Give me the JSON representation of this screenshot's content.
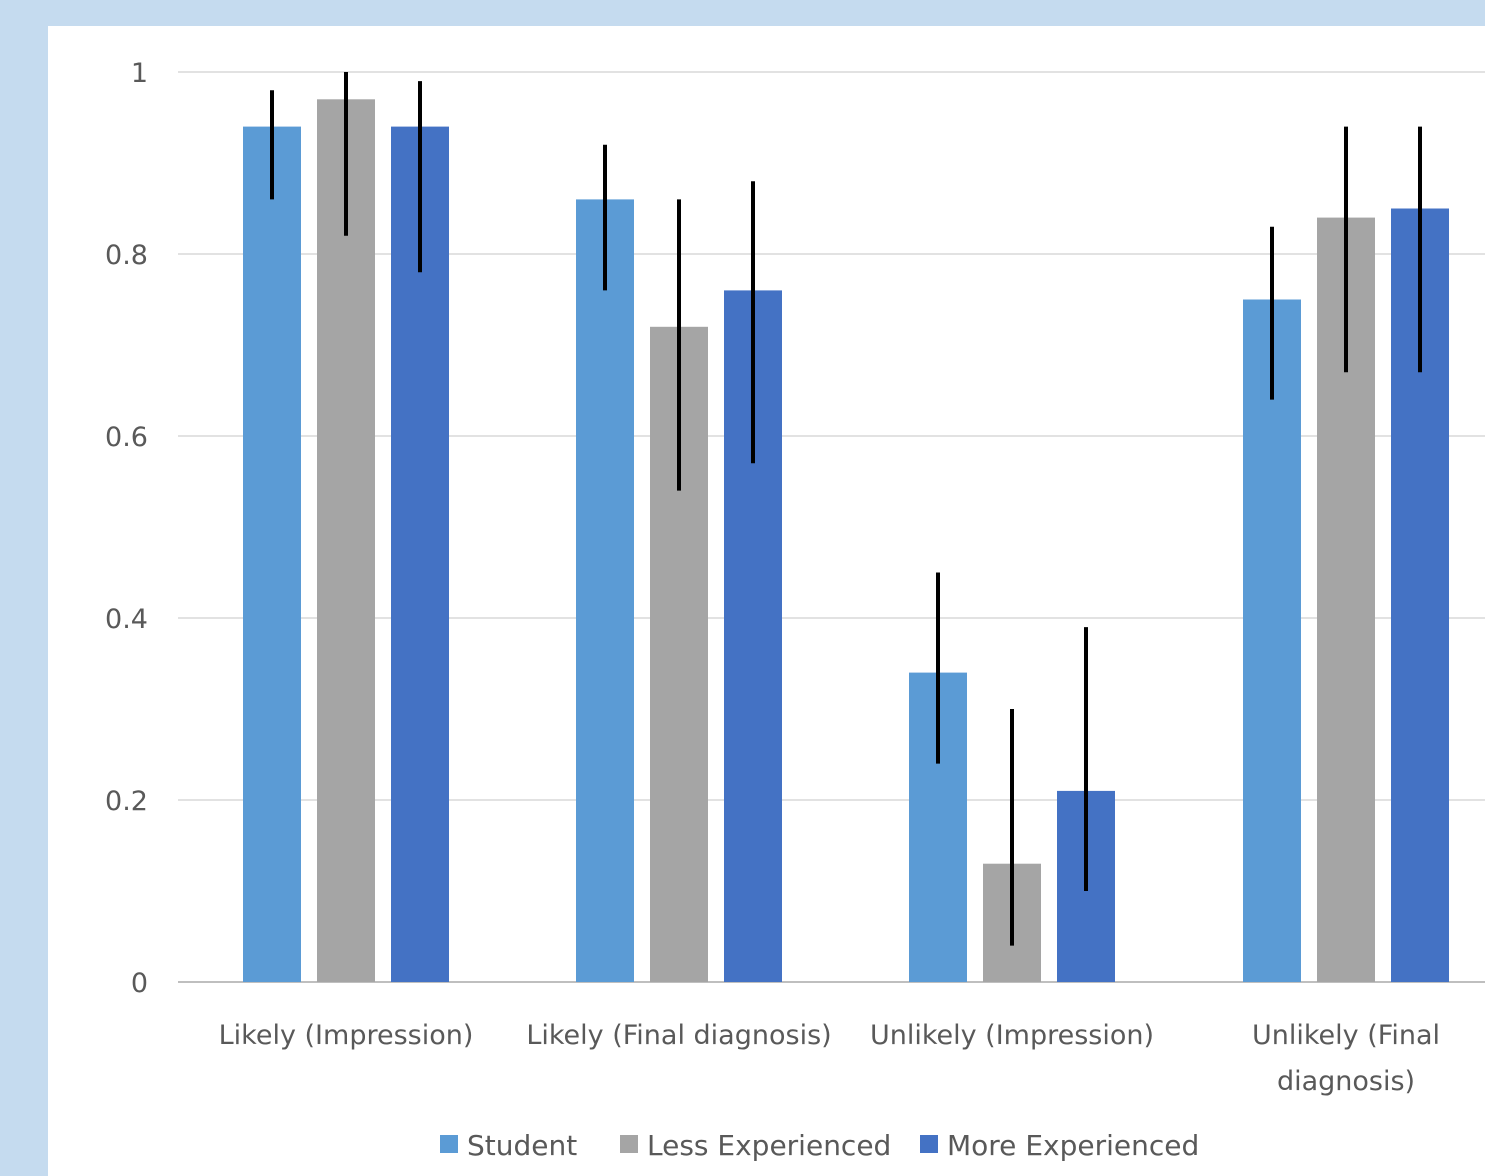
{
  "chart_data": {
    "type": "bar",
    "categories": [
      [
        "Likely (Impression)"
      ],
      [
        "Likely (Final diagnosis)"
      ],
      [
        "Unlikely (Impression)"
      ],
      [
        "Unlikely (Final",
        "diagnosis)"
      ]
    ],
    "yticks": [
      "0",
      "0.2",
      "0.4",
      "0.6",
      "0.8",
      "1"
    ],
    "ylim": [
      0,
      1
    ],
    "grid": true,
    "legend_position": "bottom",
    "series": [
      {
        "name": "Student",
        "color": "#5b9bd5",
        "values": [
          0.94,
          0.86,
          0.34,
          0.75
        ],
        "error_low": [
          0.86,
          0.76,
          0.24,
          0.64
        ],
        "error_high": [
          0.98,
          0.92,
          0.45,
          0.83
        ]
      },
      {
        "name": "Less Experienced",
        "color": "#a5a5a5",
        "values": [
          0.97,
          0.72,
          0.13,
          0.84
        ],
        "error_low": [
          0.82,
          0.54,
          0.04,
          0.67
        ],
        "error_high": [
          1.0,
          0.86,
          0.3,
          0.94
        ]
      },
      {
        "name": "More Experienced",
        "color": "#4472c4",
        "values": [
          0.94,
          0.76,
          0.21,
          0.85
        ],
        "error_low": [
          0.78,
          0.57,
          0.1,
          0.67
        ],
        "error_high": [
          0.99,
          0.88,
          0.39,
          0.94
        ]
      }
    ]
  }
}
